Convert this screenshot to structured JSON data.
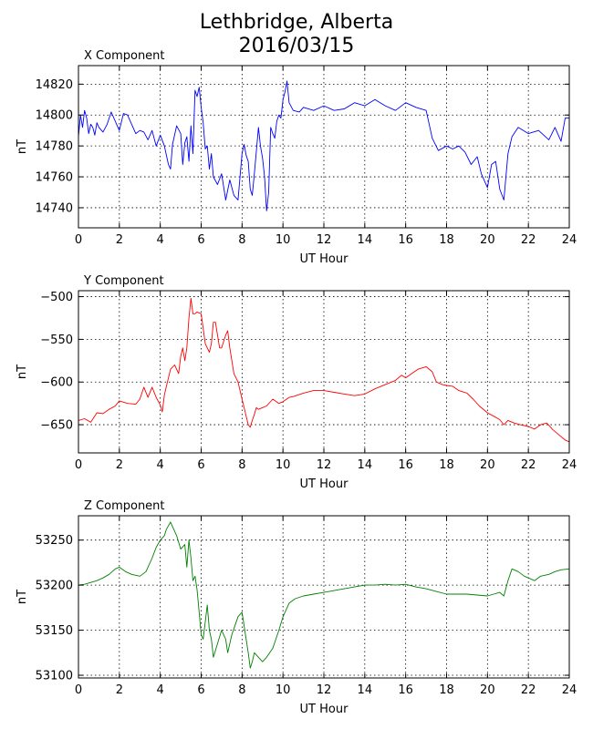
{
  "title": "Lethbridge, Alberta",
  "subtitle": "2016/03/15",
  "chart_data": [
    {
      "type": "line",
      "title": "X Component",
      "xlabel": "UT Hour",
      "ylabel": "nT",
      "xlim": [
        0,
        24
      ],
      "ylim": [
        14727,
        14832
      ],
      "xticks": [
        0,
        2,
        4,
        6,
        8,
        10,
        12,
        14,
        16,
        18,
        20,
        22,
        24
      ],
      "yticks": [
        14740,
        14760,
        14780,
        14800,
        14820
      ],
      "grid": true,
      "color": "#0000ff",
      "series": [
        {
          "x": [
            0,
            0.1,
            0.2,
            0.3,
            0.4,
            0.5,
            0.6,
            0.7,
            0.8,
            0.9,
            1.0,
            1.2,
            1.4,
            1.6,
            1.8,
            2.0,
            2.2,
            2.4,
            2.6,
            2.8,
            3.0,
            3.2,
            3.4,
            3.6,
            3.8,
            4.0,
            4.2,
            4.4,
            4.5,
            4.6,
            4.8,
            5.0,
            5.1,
            5.2,
            5.3,
            5.4,
            5.5,
            5.6,
            5.7,
            5.8,
            5.9,
            6.0,
            6.1,
            6.2,
            6.3,
            6.4,
            6.5,
            6.6,
            6.8,
            7.0,
            7.2,
            7.4,
            7.6,
            7.8,
            8.0,
            8.1,
            8.2,
            8.3,
            8.4,
            8.5,
            8.6,
            8.8,
            8.9,
            9.0,
            9.1,
            9.2,
            9.3,
            9.4,
            9.5,
            9.6,
            9.7,
            9.8,
            9.9,
            10.0,
            10.1,
            10.2,
            10.3,
            10.5,
            10.8,
            11.0,
            11.5,
            12.0,
            12.5,
            13.0,
            13.5,
            14.0,
            14.5,
            15.0,
            15.5,
            16.0,
            16.5,
            17.0,
            17.3,
            17.6,
            18.0,
            18.3,
            18.6,
            18.9,
            19.2,
            19.5,
            19.7,
            20.0,
            20.2,
            20.4,
            20.6,
            20.8,
            21.0,
            21.2,
            21.5,
            22.0,
            22.5,
            23.0,
            23.3,
            23.6,
            23.8,
            24.0
          ],
          "y": [
            14786,
            14800,
            14792,
            14803,
            14798,
            14788,
            14794,
            14792,
            14787,
            14795,
            14792,
            14789,
            14794,
            14802,
            14796,
            14790,
            14801,
            14800,
            14794,
            14788,
            14790,
            14789,
            14784,
            14790,
            14780,
            14787,
            14780,
            14768,
            14765,
            14781,
            14793,
            14788,
            14768,
            14782,
            14786,
            14770,
            14793,
            14775,
            14816,
            14812,
            14818,
            14805,
            14795,
            14778,
            14780,
            14765,
            14775,
            14760,
            14755,
            14762,
            14745,
            14758,
            14748,
            14745,
            14775,
            14781,
            14774,
            14770,
            14752,
            14748,
            14762,
            14792,
            14780,
            14772,
            14760,
            14738,
            14750,
            14792,
            14788,
            14785,
            14796,
            14800,
            14798,
            14810,
            14815,
            14822,
            14808,
            14803,
            14802,
            14805,
            14803,
            14806,
            14803,
            14804,
            14808,
            14806,
            14810,
            14806,
            14803,
            14808,
            14805,
            14803,
            14785,
            14777,
            14780,
            14778,
            14780,
            14776,
            14768,
            14773,
            14762,
            14753,
            14768,
            14770,
            14752,
            14745,
            14775,
            14786,
            14792,
            14788,
            14790,
            14784,
            14792,
            14783,
            14798,
            14798
          ]
        }
      ]
    },
    {
      "type": "line",
      "title": "Y Component",
      "xlabel": "UT Hour",
      "ylabel": "nT",
      "xlim": [
        0,
        24
      ],
      "ylim": [
        -683,
        -493
      ],
      "xticks": [
        0,
        2,
        4,
        6,
        8,
        10,
        12,
        14,
        16,
        18,
        20,
        22,
        24
      ],
      "yticks": [
        -500,
        -550,
        -600,
        -650
      ],
      "grid": true,
      "color": "#ff0000",
      "series": [
        {
          "x": [
            0,
            0.3,
            0.6,
            0.9,
            1.2,
            1.5,
            1.8,
            2.0,
            2.4,
            2.8,
            3.0,
            3.2,
            3.4,
            3.6,
            3.8,
            4.0,
            4.1,
            4.2,
            4.3,
            4.5,
            4.7,
            4.9,
            5.0,
            5.1,
            5.2,
            5.3,
            5.4,
            5.5,
            5.6,
            5.7,
            5.8,
            6.0,
            6.2,
            6.3,
            6.4,
            6.5,
            6.6,
            6.7,
            6.8,
            6.9,
            7.0,
            7.2,
            7.3,
            7.4,
            7.6,
            7.8,
            8.0,
            8.1,
            8.2,
            8.3,
            8.4,
            8.5,
            8.6,
            8.7,
            8.8,
            9.0,
            9.2,
            9.5,
            9.8,
            10.0,
            10.3,
            10.5,
            11.0,
            11.5,
            12.0,
            12.5,
            13.0,
            13.5,
            14.0,
            14.5,
            15.0,
            15.5,
            15.8,
            16.0,
            16.3,
            16.6,
            17.0,
            17.3,
            17.5,
            17.8,
            18.0,
            18.3,
            18.6,
            19.0,
            19.3,
            19.6,
            20.0,
            20.3,
            20.6,
            20.8,
            21.0,
            21.3,
            21.6,
            22.0,
            22.3,
            22.6,
            22.9,
            23.2,
            23.5,
            23.8,
            24.0
          ],
          "y": [
            -645,
            -643,
            -647,
            -636,
            -637,
            -632,
            -628,
            -622,
            -625,
            -626,
            -620,
            -606,
            -618,
            -606,
            -618,
            -627,
            -635,
            -615,
            -605,
            -585,
            -580,
            -590,
            -570,
            -560,
            -575,
            -560,
            -525,
            -502,
            -520,
            -520,
            -518,
            -520,
            -555,
            -560,
            -565,
            -555,
            -530,
            -530,
            -545,
            -560,
            -560,
            -545,
            -540,
            -560,
            -590,
            -600,
            -620,
            -630,
            -640,
            -650,
            -653,
            -645,
            -638,
            -630,
            -632,
            -630,
            -628,
            -620,
            -625,
            -623,
            -618,
            -617,
            -613,
            -610,
            -610,
            -612,
            -614,
            -616,
            -614,
            -608,
            -603,
            -598,
            -592,
            -595,
            -590,
            -585,
            -582,
            -588,
            -600,
            -603,
            -604,
            -605,
            -610,
            -613,
            -620,
            -628,
            -636,
            -640,
            -644,
            -650,
            -645,
            -648,
            -650,
            -652,
            -655,
            -650,
            -648,
            -656,
            -662,
            -668,
            -670
          ]
        }
      ]
    },
    {
      "type": "line",
      "title": "Z Component",
      "xlabel": "UT Hour",
      "ylabel": "nT",
      "xlim": [
        0,
        24
      ],
      "ylim": [
        53097,
        53277
      ],
      "xticks": [
        0,
        2,
        4,
        6,
        8,
        10,
        12,
        14,
        16,
        18,
        20,
        22,
        24
      ],
      "yticks": [
        53100,
        53150,
        53200,
        53250
      ],
      "grid": true,
      "color": "#008000",
      "series": [
        {
          "x": [
            0,
            0.3,
            0.6,
            0.9,
            1.2,
            1.5,
            1.8,
            2.0,
            2.3,
            2.6,
            3.0,
            3.3,
            3.6,
            3.8,
            4.0,
            4.2,
            4.3,
            4.5,
            4.6,
            4.8,
            5.0,
            5.2,
            5.3,
            5.4,
            5.5,
            5.6,
            5.7,
            5.8,
            5.9,
            6.0,
            6.1,
            6.3,
            6.4,
            6.5,
            6.6,
            6.8,
            7.0,
            7.2,
            7.3,
            7.5,
            7.8,
            8.0,
            8.2,
            8.3,
            8.4,
            8.5,
            8.6,
            8.8,
            9.0,
            9.2,
            9.5,
            9.8,
            10.0,
            10.3,
            10.6,
            11.0,
            11.5,
            12.0,
            12.5,
            13.0,
            13.5,
            14.0,
            14.5,
            15.0,
            15.5,
            16.0,
            16.5,
            17.0,
            17.5,
            18.0,
            18.5,
            19.0,
            19.5,
            20.0,
            20.3,
            20.6,
            20.8,
            21.0,
            21.2,
            21.5,
            21.8,
            22.0,
            22.3,
            22.6,
            23.0,
            23.3,
            23.6,
            24.0
          ],
          "y": [
            53200,
            53201,
            53203,
            53205,
            53208,
            53212,
            53218,
            53220,
            53215,
            53212,
            53210,
            53215,
            53230,
            53242,
            53250,
            53255,
            53262,
            53270,
            53265,
            53255,
            53240,
            53245,
            53220,
            53250,
            53230,
            53205,
            53210,
            53195,
            53170,
            53145,
            53140,
            53178,
            53150,
            53140,
            53120,
            53135,
            53150,
            53140,
            53125,
            53145,
            53165,
            53170,
            53140,
            53125,
            53108,
            53115,
            53125,
            53120,
            53115,
            53120,
            53130,
            53150,
            53165,
            53180,
            53185,
            53188,
            53190,
            53192,
            53194,
            53196,
            53198,
            53200,
            53200,
            53201,
            53200,
            53201,
            53198,
            53196,
            53193,
            53190,
            53190,
            53190,
            53189,
            53188,
            53190,
            53192,
            53188,
            53205,
            53218,
            53215,
            53210,
            53208,
            53205,
            53210,
            53212,
            53215,
            53217,
            53218
          ]
        }
      ]
    }
  ]
}
